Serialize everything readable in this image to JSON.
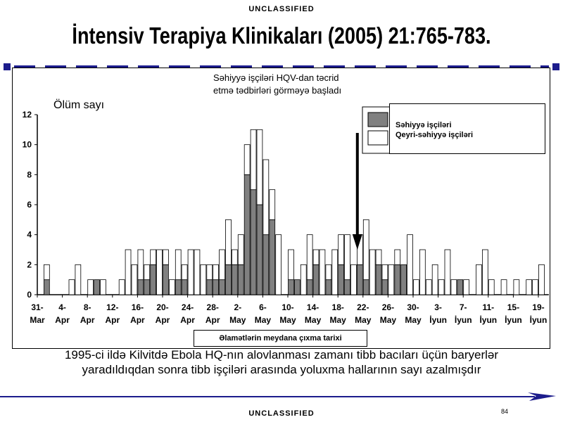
{
  "classification": {
    "top": "UNCLASSIFIED",
    "bottom": "UNCLASSIFIED"
  },
  "slide": {
    "title": "İntensiv Terapiya Klinikaları (2005) 21:765-783.",
    "caption": "1995-ci ildə Kilvitdə Ebola HQ-nın alovlanması zamanı tibb bacıları üçün baryerlər yaradıldıqdan sonra tibb işçiləri arasında yoluxma hallarının sayı azalmışdır",
    "page_number": "84"
  },
  "colors": {
    "health_workers": "#808080",
    "non_health_workers": "#ffffff",
    "frame": "#000000",
    "accent_line": "#1c1c8c"
  },
  "chart_data": {
    "type": "bar",
    "stacked": true,
    "ylabel": "Ölüm sayı",
    "ylim": [
      0,
      12
    ],
    "yticks": [
      0,
      2,
      4,
      6,
      8,
      10,
      12
    ],
    "annotation": "Səhiyyə işçiləri HQV-dan təcrid etmə tədbirləri görməyə başladı",
    "annotation_x_index": 51,
    "onset_label": "Əlamətlərin meydana çıxma tarixi",
    "x_tick_labels": [
      "31- Mar",
      "4- Apr",
      "8- Apr",
      "12- Apr",
      "16- Apr",
      "20- Apr",
      "24- Apr",
      "28- Apr",
      "2- May",
      "6- May",
      "10- May",
      "14- May",
      "18- May",
      "22- May",
      "26- May",
      "30- May",
      "3- İyun",
      "7- İyun",
      "11- İyun",
      "15- İyun",
      "19- İyun"
    ],
    "days": 81,
    "series": [
      {
        "name": "Səhiyyə işçiləri",
        "values": [
          0,
          1,
          0,
          0,
          0,
          0,
          0,
          0,
          0,
          1,
          0,
          0,
          0,
          0,
          0,
          0,
          1,
          1,
          2,
          0,
          2,
          0,
          1,
          1,
          0,
          0,
          0,
          1,
          1,
          1,
          2,
          2,
          2,
          8,
          7,
          6,
          4,
          5,
          0,
          0,
          1,
          1,
          0,
          1,
          2,
          0,
          1,
          0,
          2,
          1,
          0,
          2,
          1,
          0,
          2,
          1,
          0,
          2,
          2,
          0,
          0,
          0,
          0,
          0,
          0,
          0,
          0,
          1,
          0,
          0,
          0,
          0,
          0,
          0,
          0,
          0,
          0,
          0,
          0,
          0,
          0
        ]
      },
      {
        "name": "Qeyri-səhiyyə işçiləri",
        "values": [
          0,
          1,
          0,
          0,
          0,
          1,
          2,
          0,
          1,
          0,
          1,
          0,
          0,
          1,
          3,
          2,
          2,
          1,
          1,
          3,
          1,
          1,
          2,
          1,
          3,
          3,
          2,
          1,
          1,
          2,
          3,
          1,
          2,
          2,
          4,
          5,
          5,
          2,
          4,
          0,
          2,
          0,
          2,
          3,
          1,
          3,
          1,
          3,
          2,
          3,
          2,
          2,
          4,
          3,
          1,
          1,
          2,
          1,
          0,
          4,
          1,
          3,
          1,
          2,
          1,
          3,
          1,
          0,
          1,
          0,
          2,
          3,
          1,
          0,
          1,
          0,
          1,
          0,
          1,
          1,
          2
        ]
      }
    ]
  }
}
